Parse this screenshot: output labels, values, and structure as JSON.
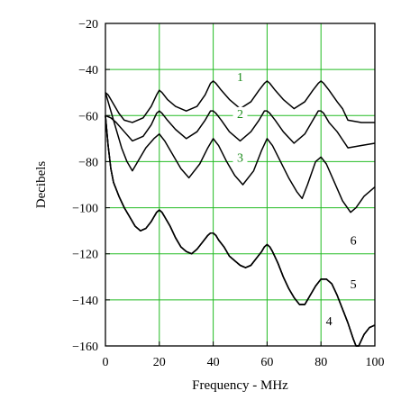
{
  "chart_data": {
    "type": "line",
    "title": "",
    "xlabel": "Frequency - MHz",
    "ylabel": "Decibels",
    "xlim": [
      0,
      100
    ],
    "ylim": [
      -160,
      -20
    ],
    "xticks": [
      0,
      20,
      40,
      60,
      80,
      100
    ],
    "yticks": [
      -20,
      -40,
      -60,
      -80,
      -100,
      -120,
      -140,
      -160
    ],
    "x_tick_labels": [
      "0",
      "20",
      "40",
      "60",
      "80",
      "100"
    ],
    "y_tick_labels": [
      "−20",
      "−40",
      "−60",
      "−80",
      "−100",
      "−120",
      "−140",
      "−160"
    ],
    "grid": true,
    "grid_color": "#22bb22",
    "line_color": "#000000",
    "label_color": "#1a8a1a",
    "series": [
      {
        "name": "1",
        "x": [
          0,
          1,
          3,
          5,
          7,
          10,
          14,
          17,
          19,
          20,
          21,
          23,
          26,
          30,
          34,
          37,
          39,
          40,
          41,
          43,
          46,
          50,
          54,
          57,
          59,
          60,
          61,
          63,
          66,
          70,
          74,
          77,
          79,
          80,
          81,
          83,
          86,
          88,
          90,
          95,
          100
        ],
        "y": [
          -50,
          -51,
          -55,
          -59,
          -62,
          -63,
          -61,
          -56,
          -51,
          -49,
          -50,
          -53,
          -56,
          -58,
          -56,
          -51,
          -46,
          -45,
          -46,
          -49,
          -53,
          -57,
          -54,
          -49,
          -46,
          -45,
          -46,
          -49,
          -53,
          -57,
          -54,
          -49,
          -46,
          -45,
          -46,
          -49,
          -54,
          -57,
          -62,
          -63,
          -63
        ]
      },
      {
        "name": "2",
        "x": [
          0,
          2,
          4,
          7,
          10,
          14,
          17,
          19,
          20,
          21,
          23,
          26,
          30,
          34,
          37,
          39,
          40,
          41,
          43,
          46,
          50,
          54,
          57,
          59,
          60,
          61,
          63,
          66,
          70,
          74,
          77,
          79,
          80,
          81,
          83,
          86,
          90,
          95,
          100
        ],
        "y": [
          -60,
          -61,
          -63,
          -67,
          -71,
          -69,
          -64,
          -59,
          -58,
          -59,
          -62,
          -66,
          -70,
          -67,
          -62,
          -58,
          -58,
          -59,
          -62,
          -67,
          -71,
          -67,
          -62,
          -58,
          -58,
          -59,
          -62,
          -67,
          -72,
          -68,
          -62,
          -58,
          -58,
          -59,
          -63,
          -67,
          -74,
          -73,
          -72
        ]
      },
      {
        "name": "3",
        "x": [
          0,
          3,
          6,
          8,
          10,
          12,
          15,
          18,
          20,
          22,
          25,
          28,
          31,
          35,
          38,
          40,
          42,
          45,
          48,
          51,
          55,
          58,
          60,
          62,
          65,
          68,
          71,
          73,
          75,
          78,
          80,
          82,
          85,
          88,
          91,
          93,
          96,
          100
        ],
        "y": [
          -50,
          -62,
          -74,
          -80,
          -84,
          -80,
          -74,
          -70,
          -68,
          -71,
          -77,
          -83,
          -87,
          -81,
          -74,
          -70,
          -73,
          -80,
          -86,
          -90,
          -84,
          -75,
          -70,
          -73,
          -80,
          -87,
          -93,
          -96,
          -90,
          -80,
          -78,
          -81,
          -89,
          -97,
          -102,
          -100,
          -95,
          -91
        ]
      },
      {
        "name": "4",
        "x": [
          0,
          1,
          2,
          3,
          5,
          7,
          9,
          11,
          13,
          15,
          17,
          18,
          19,
          20,
          21,
          22,
          24,
          26,
          28,
          30,
          32,
          34,
          36,
          38,
          39,
          40,
          41,
          42,
          44,
          46,
          48,
          50,
          52,
          54,
          56,
          58,
          59,
          60,
          61,
          62,
          64,
          66,
          68,
          70,
          72,
          74,
          76,
          78,
          80,
          82,
          84,
          86,
          88,
          90,
          92,
          93,
          94,
          96,
          98,
          100
        ],
        "y": [
          -60,
          -73,
          -83,
          -89,
          -95,
          -100,
          -104,
          -108,
          -110,
          -109,
          -106,
          -104,
          -102,
          -101,
          -102,
          -104,
          -108,
          -113,
          -117,
          -119,
          -120,
          -118,
          -115,
          -112,
          -111,
          -111,
          -112,
          -114,
          -117,
          -121,
          -123,
          -125,
          -126,
          -125,
          -122,
          -119,
          -117,
          -116,
          -117,
          -119,
          -124,
          -130,
          -135,
          -139,
          -142,
          -142,
          -138,
          -134,
          -131,
          -131,
          -133,
          -138,
          -144,
          -150,
          -157,
          -161,
          -160,
          -155,
          -152,
          -151
        ]
      },
      {
        "name": "5",
        "x": [
          0,
          1,
          2,
          3,
          5,
          7,
          9,
          11,
          13,
          15,
          17,
          18,
          19,
          20,
          21,
          22,
          24,
          26,
          28,
          30,
          32,
          34,
          36,
          38,
          39,
          40,
          41,
          42,
          44,
          46,
          48,
          50,
          52,
          54,
          56,
          58,
          59,
          60,
          61,
          62,
          64,
          66,
          68,
          70,
          72,
          74,
          76,
          78,
          80,
          82,
          84,
          86,
          88,
          90,
          92,
          93,
          94,
          96,
          98,
          100
        ],
        "y": [
          -60,
          -73,
          -83,
          -89,
          -95,
          -100,
          -104,
          -108,
          -110,
          -109,
          -106,
          -104,
          -102,
          -101,
          -102,
          -104,
          -108,
          -113,
          -117,
          -119,
          -120,
          -118,
          -115,
          -112,
          -111,
          -111,
          -112,
          -114,
          -117,
          -121,
          -123,
          -125,
          -126,
          -125,
          -122,
          -119,
          -117,
          -116,
          -117,
          -119,
          -124,
          -130,
          -135,
          -139,
          -142,
          -142,
          -138,
          -134,
          -131,
          -131,
          -133,
          -138,
          -144,
          -150,
          -157,
          -161,
          -160,
          -155,
          -152,
          -151
        ]
      },
      {
        "name": "6",
        "x": [
          0,
          1,
          2,
          3,
          5,
          7,
          9,
          11,
          13,
          15,
          17,
          18,
          19,
          20,
          21,
          22,
          24,
          26,
          28,
          30,
          32,
          34,
          36,
          38,
          39,
          40,
          41,
          42,
          44,
          46,
          48,
          50,
          52,
          54,
          56,
          58,
          59,
          60,
          61,
          62,
          64,
          66,
          68,
          70,
          72,
          74,
          76,
          78,
          80,
          82,
          84,
          86,
          88,
          90,
          92,
          93,
          94,
          96,
          98,
          100
        ],
        "y": [
          -60,
          -73,
          -83,
          -89,
          -95,
          -100,
          -104,
          -108,
          -110,
          -109,
          -106,
          -104,
          -102,
          -101,
          -102,
          -104,
          -108,
          -113,
          -117,
          -119,
          -120,
          -118,
          -115,
          -112,
          -111,
          -111,
          -112,
          -114,
          -117,
          -121,
          -123,
          -125,
          -126,
          -125,
          -122,
          -119,
          -117,
          -116,
          -117,
          -119,
          -124,
          -130,
          -135,
          -139,
          -142,
          -142,
          -138,
          -134,
          -131,
          -131,
          -133,
          -138,
          -144,
          -150,
          -157,
          -161,
          -160,
          -155,
          -152,
          -151
        ]
      }
    ],
    "curve_labels": [
      {
        "text": "1",
        "x": 50,
        "y": -45
      },
      {
        "text": "2",
        "x": 50,
        "y": -61
      },
      {
        "text": "3",
        "x": 50,
        "y": -80
      },
      {
        "text": "6",
        "x": 92,
        "y": -116
      },
      {
        "text": "5",
        "x": 92,
        "y": -135
      },
      {
        "text": "4",
        "x": 83,
        "y": -151
      }
    ]
  }
}
